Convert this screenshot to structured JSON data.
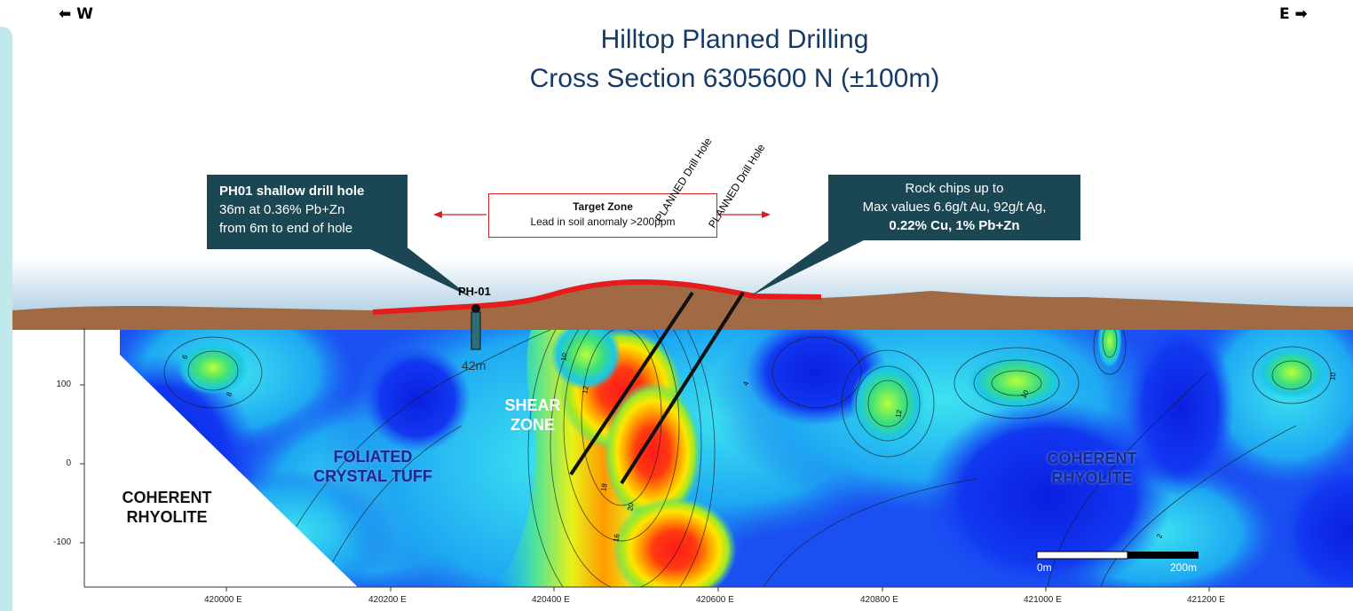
{
  "header": {
    "west_label": "W",
    "east_label": "E",
    "title_line1": "Hilltop Planned Drilling",
    "title_line2": "Cross Section 6305600 N (±100m)"
  },
  "callouts": {
    "ph01": {
      "line1": "PH01 shallow drill hole",
      "line2": "36m at 0.36% Pb+Zn",
      "line3": "from 6m to end of hole"
    },
    "rock_chips": {
      "line1": "Rock chips up to",
      "line2": "Max values 6.6g/t Au, 92g/t Ag,",
      "line3": "0.22% Cu, 1% Pb+Zn"
    },
    "target": {
      "title": "Target Zone",
      "subtitle": "Lead in soil anomaly >200ppm"
    }
  },
  "drill": {
    "ph01_label": "PH-01",
    "ph01_depth": "42m",
    "planned1": "PLANNED Drill Hole",
    "planned2": "PLANNED Drill Hole"
  },
  "geology": {
    "shear_zone": [
      "SHEAR",
      "ZONE"
    ],
    "foliated": [
      "FOLIATED",
      "CRYSTAL TUFF"
    ],
    "coherent_left": [
      "COHERENT",
      "RHYOLITE"
    ],
    "coherent_right": [
      "COHERENT",
      "RHYOLITE"
    ]
  },
  "axes": {
    "x_ticks": [
      "420000 E",
      "420200 E",
      "420400 E",
      "420600 E",
      "420800 E",
      "421000 E",
      "421200 E"
    ],
    "y_ticks": [
      "100",
      "0",
      "-100"
    ]
  },
  "scale_bar": {
    "start_label": "0m",
    "end_label": "200m"
  },
  "contour_labels": [
    "10",
    "12",
    "14",
    "16",
    "18",
    "20",
    "8",
    "6",
    "4",
    "2"
  ],
  "colors": {
    "title": "#163a66",
    "callout_bg": "#1b4653",
    "ground": "#a06a45",
    "sky": "#bcd8e8",
    "anomaly_red": "#e02020",
    "target_box": "#d02222"
  }
}
